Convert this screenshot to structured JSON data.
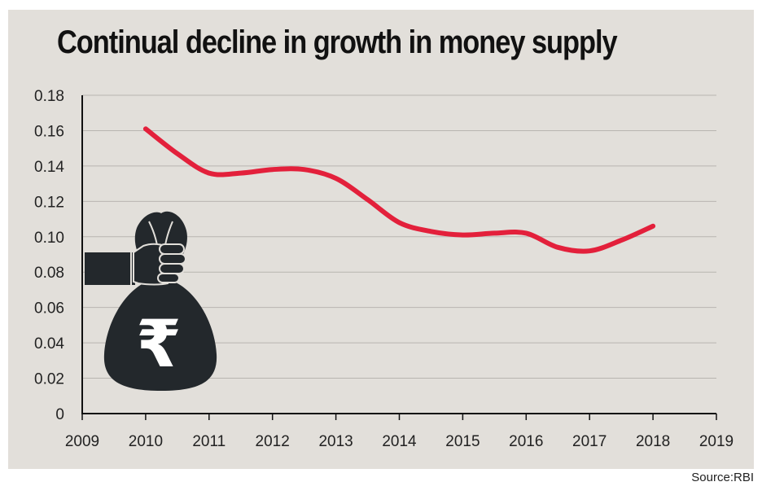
{
  "chart_data": {
    "type": "line",
    "title": "Continual decline in growth in money supply",
    "xlabel": "",
    "ylabel": "",
    "xlim": [
      2009,
      2019
    ],
    "ylim": [
      0,
      0.18
    ],
    "x_ticks": [
      "2009",
      "2010",
      "2011",
      "2012",
      "2013",
      "2014",
      "2015",
      "2016",
      "2017",
      "2018",
      "2019"
    ],
    "y_ticks": [
      "0",
      "0.02",
      "0.04",
      "0.06",
      "0.08",
      "0.10",
      "0.12",
      "0.14",
      "0.16",
      "0.18"
    ],
    "grid": "horizontal",
    "legend": "none",
    "series": [
      {
        "color": "#e3203b",
        "x": [
          2010,
          2010.5,
          2011,
          2011.5,
          2012,
          2012.5,
          2013,
          2013.5,
          2014,
          2014.5,
          2015,
          2015.5,
          2016,
          2016.5,
          2017,
          2017.5,
          2018
        ],
        "y": [
          0.161,
          0.147,
          0.136,
          0.136,
          0.138,
          0.138,
          0.133,
          0.121,
          0.108,
          0.103,
          0.101,
          0.102,
          0.102,
          0.094,
          0.092,
          0.098,
          0.106
        ]
      }
    ]
  },
  "illustration": {
    "name": "money-bag-rupee-icon",
    "symbol": "₹",
    "color": "#23282c"
  },
  "source": "Source:RBI",
  "colors": {
    "background": "#e2dfda",
    "line": "#e3203b",
    "grid": "#b8b5b0",
    "axis": "#111111"
  }
}
